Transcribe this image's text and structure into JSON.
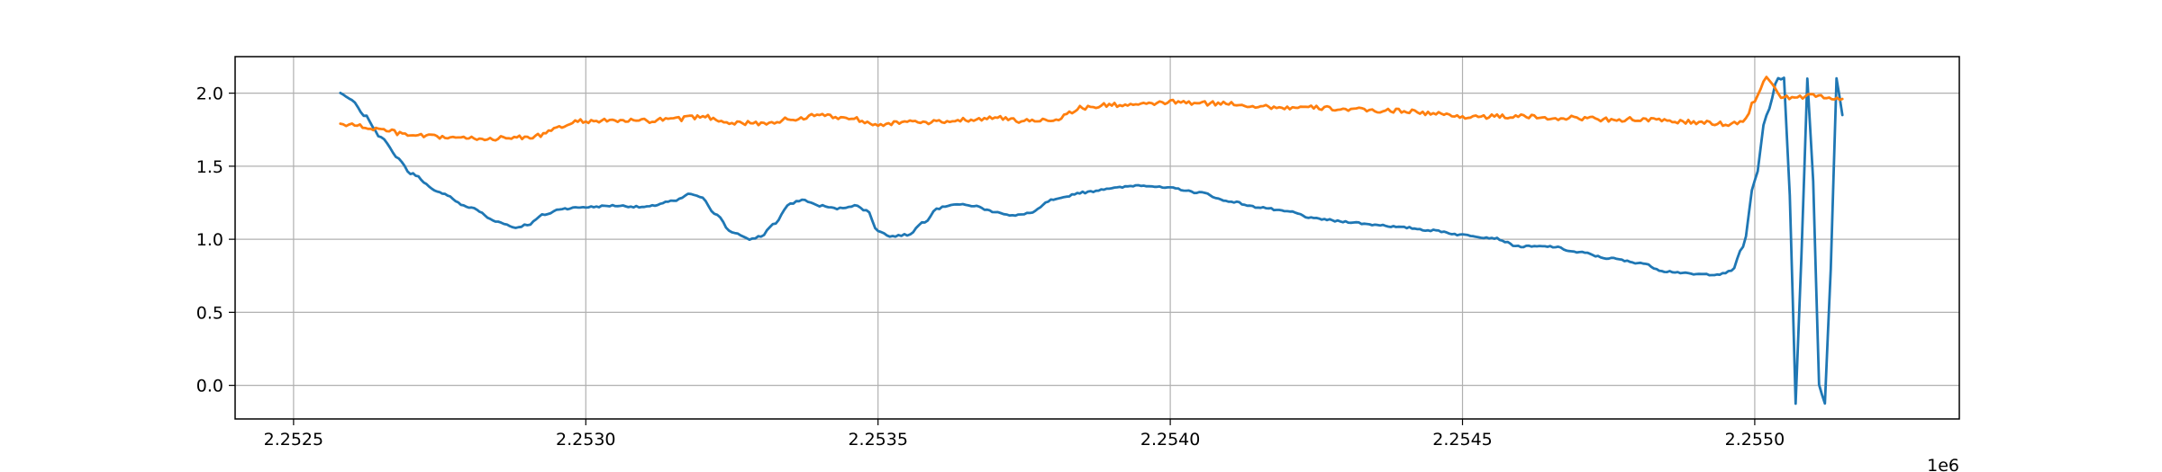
{
  "chart_data": {
    "type": "line",
    "title": "",
    "xlabel": "",
    "ylabel": "",
    "x_offset_label": "1e6",
    "xlim": [
      2.2524,
      2.25535
    ],
    "ylim": [
      -0.23,
      2.25
    ],
    "grid": true,
    "x_ticks": [
      2.2525,
      2.253,
      2.2535,
      2.254,
      2.2545,
      2.255
    ],
    "x_tick_labels": [
      "2.2525",
      "2.2530",
      "2.2535",
      "2.2540",
      "2.2545",
      "2.2550"
    ],
    "y_ticks": [
      0.0,
      0.5,
      1.0,
      1.5,
      2.0
    ],
    "y_tick_labels": [
      "0.0",
      "0.5",
      "1.0",
      "1.5",
      "2.0"
    ],
    "colors": {
      "series_1": "#1f77b4",
      "series_2": "#ff7f0e",
      "grid": "#b0b0b0"
    },
    "series": [
      {
        "color": "#1f77b4",
        "noise": 0.012,
        "x": [
          2.25258,
          2.2526,
          2.25262,
          2.25265,
          2.25268,
          2.2527,
          2.25275,
          2.2528,
          2.25285,
          2.25288,
          2.2529,
          2.25293,
          2.25296,
          2.253,
          2.25305,
          2.2531,
          2.25315,
          2.25318,
          2.2532,
          2.25322,
          2.25325,
          2.25328,
          2.2533,
          2.25332,
          2.25335,
          2.25337,
          2.2534,
          2.25343,
          2.25346,
          2.25348,
          2.2535,
          2.25352,
          2.25355,
          2.25358,
          2.2536,
          2.25363,
          2.25366,
          2.2537,
          2.25373,
          2.25376,
          2.2538,
          2.25385,
          2.2539,
          2.25395,
          2.254,
          2.25405,
          2.2541,
          2.25415,
          2.2542,
          2.25425,
          2.2543,
          2.25435,
          2.2544,
          2.25445,
          2.2545,
          2.25455,
          2.2546,
          2.25465,
          2.2547,
          2.25475,
          2.2548,
          2.25485,
          2.2549,
          2.25494,
          2.25496,
          2.25498,
          2.255,
          2.25502,
          2.25504,
          2.25505,
          2.25506,
          2.25507,
          2.25508,
          2.25509,
          2.2551,
          2.25511,
          2.25512,
          2.25513,
          2.25514,
          2.25515
        ],
        "y": [
          2.0,
          1.95,
          1.85,
          1.7,
          1.55,
          1.45,
          1.32,
          1.22,
          1.12,
          1.08,
          1.1,
          1.17,
          1.21,
          1.22,
          1.23,
          1.22,
          1.26,
          1.31,
          1.28,
          1.18,
          1.05,
          1.0,
          1.02,
          1.1,
          1.24,
          1.27,
          1.23,
          1.21,
          1.23,
          1.2,
          1.06,
          1.02,
          1.03,
          1.12,
          1.21,
          1.24,
          1.23,
          1.19,
          1.16,
          1.18,
          1.27,
          1.32,
          1.35,
          1.37,
          1.35,
          1.32,
          1.26,
          1.22,
          1.19,
          1.14,
          1.12,
          1.1,
          1.08,
          1.06,
          1.03,
          1.01,
          0.95,
          0.95,
          0.91,
          0.87,
          0.84,
          0.78,
          0.76,
          0.76,
          0.78,
          0.95,
          1.4,
          1.85,
          2.1,
          2.1,
          1.3,
          -0.12,
          0.9,
          2.1,
          1.4,
          0.0,
          -0.12,
          0.8,
          2.1,
          1.85
        ]
      },
      {
        "color": "#ff7f0e",
        "noise": 0.03,
        "x": [
          2.25258,
          2.2526,
          2.25265,
          2.2527,
          2.25275,
          2.2528,
          2.25285,
          2.2529,
          2.253,
          2.25305,
          2.2531,
          2.25315,
          2.2532,
          2.25325,
          2.2533,
          2.25335,
          2.2534,
          2.25345,
          2.2535,
          2.25355,
          2.2536,
          2.25365,
          2.2537,
          2.25375,
          2.2538,
          2.25385,
          2.2539,
          2.25395,
          2.254,
          2.25405,
          2.2541,
          2.25415,
          2.2542,
          2.25425,
          2.2543,
          2.25435,
          2.2544,
          2.25445,
          2.2545,
          2.25455,
          2.2546,
          2.25465,
          2.2547,
          2.25475,
          2.2548,
          2.25485,
          2.2549,
          2.25495,
          2.25498,
          2.255,
          2.25502,
          2.25505,
          2.2551,
          2.25515
        ],
        "y": [
          1.79,
          1.78,
          1.75,
          1.71,
          1.7,
          1.69,
          1.69,
          1.7,
          1.81,
          1.81,
          1.81,
          1.82,
          1.84,
          1.8,
          1.79,
          1.82,
          1.85,
          1.83,
          1.79,
          1.8,
          1.8,
          1.82,
          1.83,
          1.81,
          1.82,
          1.9,
          1.92,
          1.92,
          1.94,
          1.93,
          1.93,
          1.91,
          1.9,
          1.9,
          1.89,
          1.88,
          1.88,
          1.86,
          1.84,
          1.84,
          1.84,
          1.83,
          1.83,
          1.82,
          1.82,
          1.81,
          1.8,
          1.79,
          1.8,
          1.95,
          2.1,
          1.97,
          1.98,
          1.96
        ]
      }
    ]
  }
}
